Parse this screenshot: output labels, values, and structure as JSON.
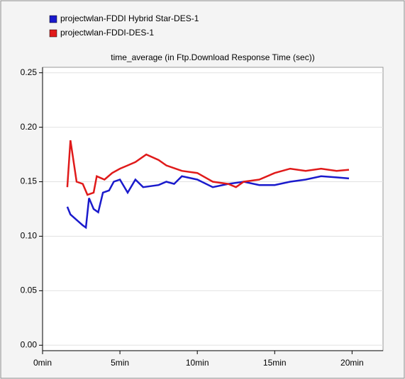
{
  "chart_data": {
    "type": "line",
    "title": "time_average (in Ftp.Download Response Time (sec))",
    "series": [
      {
        "name": "projectwlan-FDDI Hybrid Star-DES-1",
        "color": "#1a1acc",
        "x": [
          1.6,
          1.8,
          2.2,
          2.6,
          2.8,
          3.0,
          3.3,
          3.6,
          3.9,
          4.3,
          4.6,
          5.0,
          5.5,
          6.0,
          6.5,
          7.5,
          8.0,
          8.5,
          9.0,
          10.0,
          11.0,
          12.0,
          13.0,
          14.0,
          15.0,
          16.0,
          17.0,
          18.0,
          19.0,
          19.8
        ],
        "values": [
          0.127,
          0.12,
          0.115,
          0.11,
          0.108,
          0.135,
          0.125,
          0.122,
          0.14,
          0.142,
          0.15,
          0.152,
          0.14,
          0.152,
          0.145,
          0.147,
          0.15,
          0.148,
          0.155,
          0.152,
          0.145,
          0.148,
          0.15,
          0.147,
          0.147,
          0.15,
          0.152,
          0.155,
          0.154,
          0.153
        ]
      },
      {
        "name": "projectwlan-FDDI-DES-1",
        "color": "#e01a1a",
        "x": [
          1.6,
          1.8,
          2.2,
          2.6,
          2.9,
          3.3,
          3.5,
          4.0,
          4.5,
          5.0,
          5.5,
          6.0,
          6.7,
          7.5,
          8.0,
          9.0,
          10.0,
          11.0,
          12.0,
          12.5,
          13.0,
          14.0,
          15.0,
          16.0,
          17.0,
          18.0,
          19.0,
          19.8
        ],
        "values": [
          0.145,
          0.188,
          0.15,
          0.148,
          0.138,
          0.14,
          0.155,
          0.152,
          0.158,
          0.162,
          0.165,
          0.168,
          0.175,
          0.17,
          0.165,
          0.16,
          0.158,
          0.15,
          0.148,
          0.145,
          0.15,
          0.152,
          0.158,
          0.162,
          0.16,
          0.162,
          0.16,
          0.161
        ]
      }
    ],
    "xlim": [
      0,
      22
    ],
    "xticks": [
      {
        "value": 0,
        "label": "0min"
      },
      {
        "value": 5,
        "label": "5min"
      },
      {
        "value": 10,
        "label": "10min"
      },
      {
        "value": 15,
        "label": "15min"
      },
      {
        "value": 20,
        "label": "20min"
      }
    ],
    "ylim": [
      -0.005,
      0.255
    ],
    "yticks": [
      {
        "value": 0,
        "label": "0.00"
      },
      {
        "value": 0.05,
        "label": "0.05"
      },
      {
        "value": 0.1,
        "label": "0.10"
      },
      {
        "value": 0.15,
        "label": "0.15"
      },
      {
        "value": 0.2,
        "label": "0.20"
      },
      {
        "value": 0.25,
        "label": "0.25"
      }
    ],
    "grid": true
  }
}
